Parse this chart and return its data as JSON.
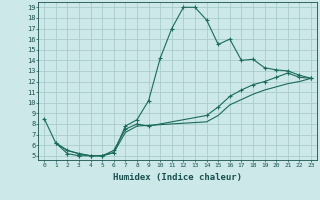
{
  "xlabel": "Humidex (Indice chaleur)",
  "xlim": [
    -0.5,
    23.5
  ],
  "ylim": [
    4.6,
    19.5
  ],
  "xticks": [
    0,
    1,
    2,
    3,
    4,
    5,
    6,
    7,
    8,
    9,
    10,
    11,
    12,
    13,
    14,
    15,
    16,
    17,
    18,
    19,
    20,
    21,
    22,
    23
  ],
  "yticks": [
    5,
    6,
    7,
    8,
    9,
    10,
    11,
    12,
    13,
    14,
    15,
    16,
    17,
    18,
    19
  ],
  "bg_color": "#cce8e8",
  "grid_color": "#aacccc",
  "line_color": "#1a6b5a",
  "line1_x": [
    0,
    1,
    2,
    3,
    4,
    5,
    6,
    7,
    8,
    9,
    10,
    11,
    12,
    13,
    14,
    15,
    16,
    17,
    18,
    19,
    20,
    21,
    22,
    23
  ],
  "line1_y": [
    8.5,
    6.2,
    5.2,
    5.0,
    5.0,
    5.0,
    5.3,
    7.8,
    8.4,
    10.2,
    14.2,
    17.0,
    19.0,
    19.0,
    17.8,
    15.5,
    16.0,
    14.0,
    14.1,
    13.3,
    13.1,
    13.0,
    12.6,
    12.3
  ],
  "line2_x": [
    1,
    2,
    3,
    4,
    5,
    6,
    7,
    8,
    9,
    14,
    15,
    16,
    17,
    18,
    19,
    20,
    21,
    22,
    23
  ],
  "line2_y": [
    6.2,
    5.5,
    5.2,
    5.0,
    5.0,
    5.5,
    7.5,
    8.0,
    7.8,
    8.8,
    9.6,
    10.6,
    11.2,
    11.7,
    12.0,
    12.4,
    12.8,
    12.4,
    12.3
  ],
  "line3_x": [
    1,
    2,
    3,
    4,
    5,
    6,
    7,
    8,
    14,
    15,
    16,
    17,
    18,
    19,
    20,
    21,
    22,
    23
  ],
  "line3_y": [
    6.2,
    5.5,
    5.2,
    5.0,
    5.0,
    5.3,
    7.2,
    7.8,
    8.2,
    8.8,
    9.8,
    10.3,
    10.8,
    11.2,
    11.5,
    11.8,
    12.0,
    12.3
  ]
}
